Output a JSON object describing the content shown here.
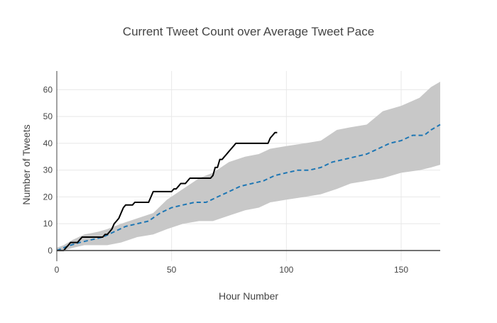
{
  "chart_data": {
    "type": "line",
    "title": "Current Tweet Count over Average Tweet Pace",
    "xlabel": "Hour Number",
    "ylabel": "Number of Tweets",
    "xlim": [
      0,
      167
    ],
    "ylim": [
      -4,
      67
    ],
    "x_ticks": [
      0,
      50,
      100,
      150
    ],
    "y_ticks": [
      0,
      10,
      20,
      30,
      40,
      50,
      60
    ],
    "grid": true,
    "legend": "none",
    "colors": {
      "band": "#c8c8c8",
      "average": "#1f77b4",
      "current": "#000000"
    },
    "band": {
      "x": [
        0,
        3,
        7,
        12,
        18,
        22,
        28,
        35,
        42,
        48,
        55,
        62,
        68,
        75,
        82,
        88,
        93,
        100,
        108,
        115,
        122,
        128,
        135,
        142,
        150,
        158,
        163,
        167
      ],
      "upper": [
        1,
        2,
        4,
        6,
        7,
        8,
        10,
        12,
        14,
        19,
        23,
        27,
        29,
        33,
        35,
        36,
        38,
        39,
        40,
        41,
        45,
        46,
        47,
        52,
        54,
        57,
        61,
        63
      ],
      "lower": [
        0,
        0,
        1,
        2,
        2,
        2,
        3,
        5,
        6,
        8,
        10,
        11,
        11,
        13,
        15,
        16,
        18,
        19,
        20,
        21,
        23,
        25,
        26,
        27,
        29,
        30,
        31,
        32
      ]
    },
    "average": {
      "name": "",
      "x": [
        0,
        3,
        6,
        10,
        15,
        20,
        25,
        30,
        35,
        40,
        45,
        50,
        55,
        60,
        65,
        70,
        75,
        80,
        85,
        90,
        95,
        100,
        105,
        110,
        115,
        120,
        125,
        130,
        135,
        140,
        145,
        150,
        155,
        160,
        163,
        167
      ],
      "y": [
        0,
        1,
        2,
        3,
        4,
        5,
        7,
        9,
        10,
        11,
        14,
        16,
        17,
        18,
        18,
        20,
        22,
        24,
        25,
        26,
        28,
        29,
        30,
        30,
        31,
        33,
        34,
        35,
        36,
        38,
        40,
        41,
        43,
        43,
        45,
        47
      ]
    },
    "current": {
      "name": "",
      "x": [
        0,
        3,
        4,
        5,
        6,
        9,
        10,
        11,
        12,
        14,
        16,
        18,
        20,
        21,
        22,
        23,
        24,
        25,
        26,
        27,
        28,
        29,
        30,
        31,
        32,
        33,
        34,
        35,
        36,
        38,
        40,
        42,
        44,
        46,
        48,
        50,
        51,
        52,
        53,
        54,
        55,
        56,
        58,
        60,
        62,
        64,
        66,
        67,
        68,
        69,
        70,
        71,
        72,
        73,
        74,
        75,
        76,
        77,
        78,
        80,
        82,
        84,
        86,
        88,
        90,
        92,
        93,
        94,
        95,
        96
      ],
      "y": [
        0,
        0,
        1,
        2,
        3,
        3,
        4,
        5,
        5,
        5,
        5,
        5,
        5,
        6,
        6,
        7,
        8,
        10,
        11,
        12,
        14,
        16,
        17,
        17,
        17,
        17,
        18,
        18,
        18,
        18,
        18,
        22,
        22,
        22,
        22,
        22,
        23,
        23,
        24,
        25,
        25,
        25,
        27,
        27,
        27,
        27,
        27,
        27,
        28,
        31,
        31,
        34,
        34,
        35,
        36,
        37,
        38,
        39,
        40,
        40,
        40,
        40,
        40,
        40,
        40,
        40,
        42,
        43,
        44,
        44
      ]
    }
  }
}
